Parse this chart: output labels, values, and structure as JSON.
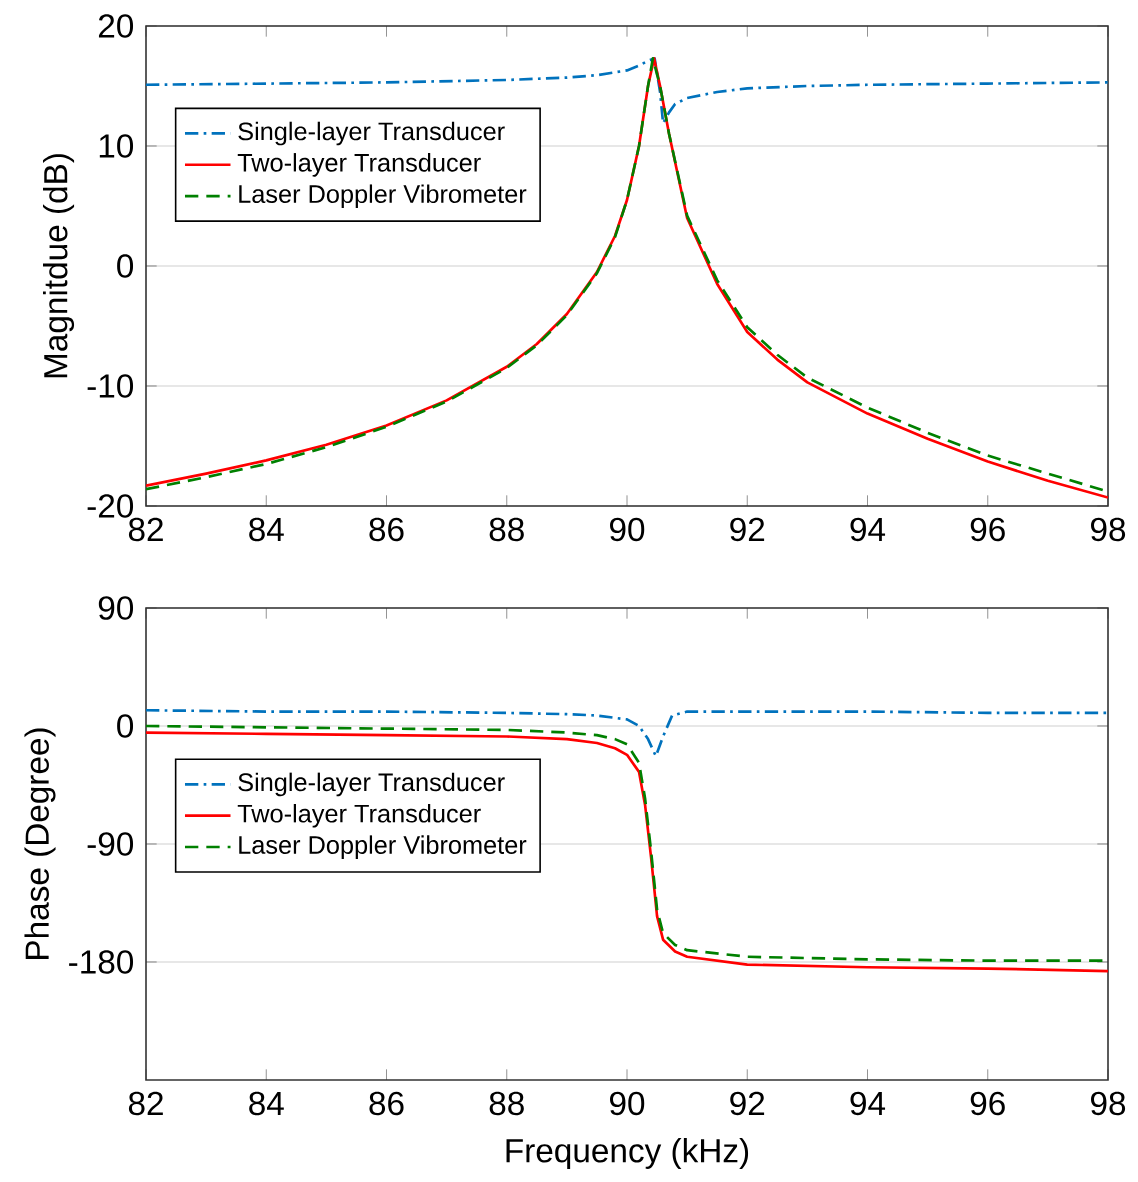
{
  "chart_data": [
    {
      "type": "line",
      "ylabel": "Magnitdue (dB)",
      "xlim": [
        82,
        98
      ],
      "ylim": [
        -20,
        20
      ],
      "xticks": [
        82,
        84,
        86,
        88,
        90,
        92,
        94,
        96,
        98
      ],
      "yticks": [
        -20,
        -10,
        0,
        10,
        20
      ],
      "grid": "y",
      "legend": "top left",
      "series": [
        {
          "name": "Single-layer Transducer",
          "color": "#0072bd",
          "line_style": "dashdot",
          "x": [
            82,
            84,
            86,
            88,
            89,
            89.5,
            90,
            90.2,
            90.35,
            90.46,
            90.55,
            90.6,
            90.7,
            90.8,
            91,
            91.5,
            92,
            93,
            94,
            96,
            98
          ],
          "values": [
            15.1,
            15.2,
            15.3,
            15.5,
            15.7,
            15.9,
            16.3,
            16.7,
            17.1,
            17.3,
            14.5,
            11.9,
            12.8,
            13.5,
            14.0,
            14.5,
            14.8,
            15.0,
            15.1,
            15.2,
            15.3
          ]
        },
        {
          "name": "Two-layer Transducer",
          "color": "#ff0000",
          "line_style": "solid",
          "x": [
            82,
            83,
            84,
            85,
            86,
            87,
            88,
            88.5,
            89,
            89.5,
            89.8,
            90,
            90.2,
            90.35,
            90.45,
            90.55,
            90.7,
            91,
            91.5,
            92,
            92.5,
            93,
            94,
            95,
            96,
            97,
            98
          ],
          "values": [
            -18.3,
            -17.3,
            -16.2,
            -14.9,
            -13.3,
            -11.2,
            -8.4,
            -6.5,
            -4.0,
            -0.5,
            2.5,
            5.5,
            10,
            15,
            17.3,
            15,
            11,
            4,
            -1.5,
            -5.5,
            -7.8,
            -9.7,
            -12.3,
            -14.4,
            -16.3,
            -17.9,
            -19.3
          ]
        },
        {
          "name": "Laser Doppler Vibrometer",
          "color": "#008000",
          "line_style": "dashed",
          "x": [
            82,
            83,
            84,
            85,
            86,
            87,
            88,
            88.5,
            89,
            89.5,
            89.8,
            90,
            90.2,
            90.35,
            90.43,
            90.55,
            90.7,
            91,
            91.5,
            92,
            92.5,
            93,
            94,
            95,
            96,
            97,
            98
          ],
          "values": [
            -18.6,
            -17.6,
            -16.5,
            -15.1,
            -13.4,
            -11.3,
            -8.5,
            -6.6,
            -4.1,
            -0.6,
            2.4,
            5.5,
            10,
            15,
            17.3,
            15,
            11,
            4.2,
            -1.2,
            -5.1,
            -7.4,
            -9.3,
            -11.8,
            -13.9,
            -15.8,
            -17.3,
            -18.8
          ]
        }
      ]
    },
    {
      "type": "line",
      "xlabel": "Frequency (kHz)",
      "ylabel": "Phase (Degree)",
      "xlim": [
        82,
        98
      ],
      "ylim": [
        -270,
        90
      ],
      "xticks": [
        82,
        84,
        86,
        88,
        90,
        92,
        94,
        96,
        98
      ],
      "yticks": [
        -180,
        -90,
        0,
        90
      ],
      "grid": "y",
      "legend": "left",
      "series": [
        {
          "name": "Single-layer Transducer",
          "color": "#0072bd",
          "line_style": "dashdot",
          "x": [
            82,
            84,
            86,
            88,
            89,
            89.5,
            90,
            90.2,
            90.35,
            90.48,
            90.6,
            90.75,
            91,
            92,
            94,
            96,
            98
          ],
          "values": [
            12,
            11,
            11,
            10,
            9,
            8,
            5,
            0,
            -10,
            -23,
            -8,
            8,
            11,
            11,
            11,
            10,
            10
          ]
        },
        {
          "name": "Two-layer Transducer",
          "color": "#ff0000",
          "line_style": "solid",
          "x": [
            82,
            84,
            86,
            88,
            89,
            89.5,
            89.8,
            90,
            90.2,
            90.3,
            90.4,
            90.5,
            90.6,
            90.8,
            91,
            92,
            94,
            96,
            98
          ],
          "values": [
            -5,
            -6,
            -7,
            -8,
            -10,
            -13,
            -17,
            -22,
            -35,
            -60,
            -100,
            -145,
            -163,
            -172,
            -176,
            -182,
            -184,
            -185,
            -187
          ]
        },
        {
          "name": "Laser Doppler Vibrometer",
          "color": "#008000",
          "line_style": "dashed",
          "x": [
            82,
            84,
            86,
            88,
            89,
            89.5,
            89.8,
            90,
            90.2,
            90.3,
            90.4,
            90.5,
            90.6,
            90.8,
            91,
            92,
            94,
            96,
            98
          ],
          "values": [
            0,
            -1,
            -2,
            -3,
            -5,
            -7,
            -10,
            -14,
            -28,
            -55,
            -95,
            -140,
            -158,
            -167,
            -171,
            -176,
            -178,
            -179,
            -179
          ]
        }
      ]
    }
  ]
}
